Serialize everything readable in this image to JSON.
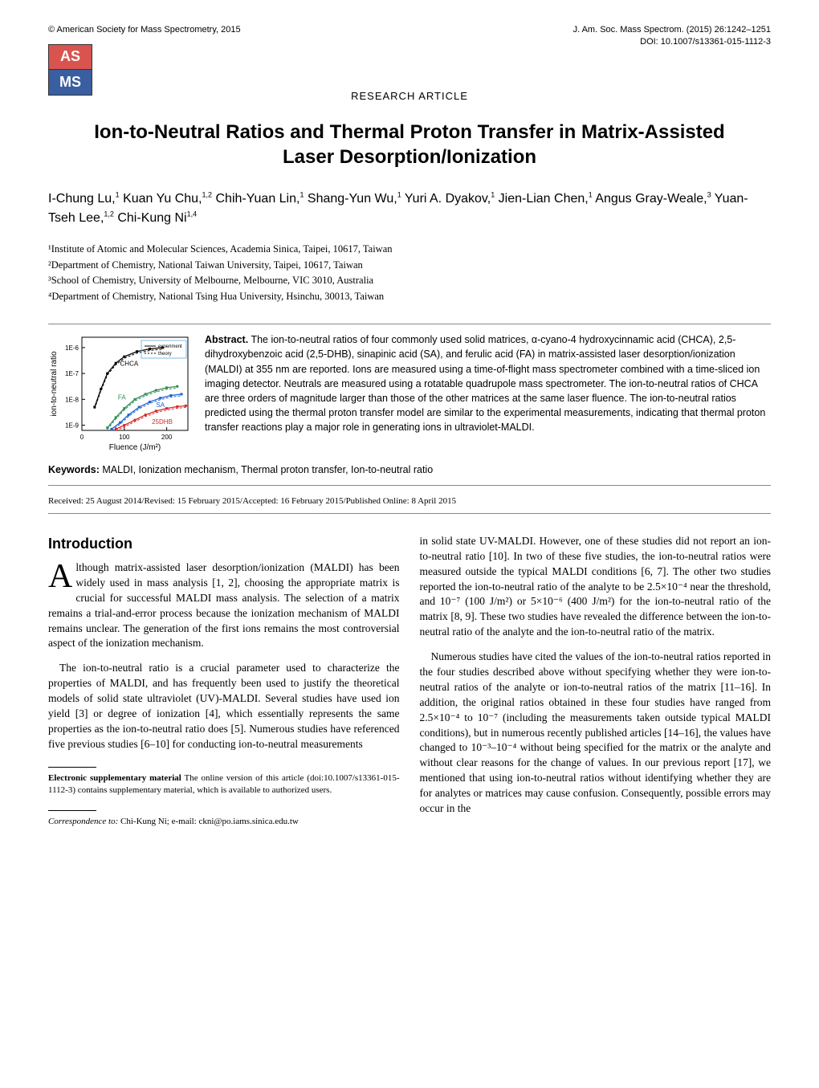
{
  "header": {
    "copyright": "© American Society for Mass Spectrometry, 2015",
    "journal_ref": "J. Am. Soc. Mass Spectrom. (2015) 26:1242–1251",
    "doi": "DOI: 10.1007/s13361-015-1112-3"
  },
  "logo": {
    "top": "AS",
    "bottom": "MS",
    "top_color": "#d9534f",
    "bottom_color": "#3a5fa0"
  },
  "section_label": "RESEARCH ARTICLE",
  "title": "Ion-to-Neutral Ratios and Thermal Proton Transfer in Matrix-Assisted Laser Desorption/Ionization",
  "authors_html": "I-Chung Lu,<sup>1</sup> Kuan Yu Chu,<sup>1,2</sup> Chih-Yuan Lin,<sup>1</sup> Shang-Yun Wu,<sup>1</sup> Yuri A. Dyakov,<sup>1</sup> Jien-Lian Chen,<sup>1</sup> Angus Gray-Weale,<sup>3</sup> Yuan-Tseh Lee,<sup>1,2</sup> Chi-Kung Ni<sup>1,4</sup>",
  "affiliations": [
    "¹Institute of Atomic and Molecular Sciences, Academia Sinica, Taipei, 10617, Taiwan",
    "²Department of Chemistry, National Taiwan University, Taipei, 10617, Taiwan",
    "³School of Chemistry, University of Melbourne, Melbourne, VIC 3010, Australia",
    "⁴Department of Chemistry, National Tsing Hua University, Hsinchu, 30013, Taiwan"
  ],
  "chart": {
    "type": "line",
    "width": 180,
    "height": 150,
    "background_color": "#ffffff",
    "axis_color": "#000000",
    "grid": false,
    "x_label": "Fluence (J/m²)",
    "y_label": "ion-to-neutral ratio",
    "label_fontsize": 10,
    "y_scale": "log",
    "y_ticks": [
      "1E-9",
      "1E-8",
      "1E-7",
      "1E-6"
    ],
    "x_ticks": [
      "0",
      "100",
      "200"
    ],
    "xlim": [
      0,
      250
    ],
    "ylim_log_exp": [
      -9.2,
      -5.6
    ],
    "legend": {
      "items": [
        "experiment",
        "theory"
      ],
      "styles": [
        "solid",
        "dashed"
      ],
      "box_color": "#5dade2",
      "position": "top-right"
    },
    "series": [
      {
        "name": "CHCA",
        "color": "#000000",
        "text_color": "#000000",
        "points": [
          [
            30,
            -8.3
          ],
          [
            45,
            -7.6
          ],
          [
            60,
            -7.0
          ],
          [
            80,
            -6.6
          ],
          [
            100,
            -6.35
          ],
          [
            130,
            -6.15
          ],
          [
            160,
            -6.05
          ],
          [
            190,
            -6.0
          ]
        ]
      },
      {
        "name": "FA",
        "color": "#2e8b57",
        "text_color": "#2e8b57",
        "points": [
          [
            60,
            -9.1
          ],
          [
            80,
            -8.7
          ],
          [
            100,
            -8.35
          ],
          [
            125,
            -8.0
          ],
          [
            150,
            -7.8
          ],
          [
            175,
            -7.65
          ],
          [
            200,
            -7.55
          ],
          [
            225,
            -7.5
          ]
        ]
      },
      {
        "name": "SA",
        "color": "#1e62d0",
        "text_color": "#1e62d0",
        "points": [
          [
            70,
            -9.15
          ],
          [
            90,
            -8.9
          ],
          [
            110,
            -8.6
          ],
          [
            135,
            -8.3
          ],
          [
            160,
            -8.1
          ],
          [
            185,
            -7.95
          ],
          [
            210,
            -7.85
          ],
          [
            235,
            -7.8
          ]
        ]
      },
      {
        "name": "25DHB",
        "color": "#d62728",
        "text_color": "#d62728",
        "points": [
          [
            80,
            -9.15
          ],
          [
            100,
            -9.0
          ],
          [
            125,
            -8.8
          ],
          [
            150,
            -8.6
          ],
          [
            175,
            -8.45
          ],
          [
            200,
            -8.35
          ],
          [
            225,
            -8.28
          ],
          [
            245,
            -8.25
          ]
        ]
      }
    ]
  },
  "abstract_label": "Abstract.",
  "abstract_body": "The ion-to-neutral ratios of four commonly used solid matrices, α-cyano-4 hydroxycinnamic acid (CHCA), 2,5-dihydroxybenzoic acid (2,5-DHB), sinapinic acid (SA), and ferulic acid (FA) in matrix-assisted laser desorption/ionization (MALDI) at 355 nm are reported. Ions are measured using a time-of-flight mass spectrometer combined with a time-sliced ion imaging detector. Neutrals are measured using a rotatable quadrupole mass spectrometer. The ion-to-neutral ratios of CHCA are three orders of magnitude larger than those of the other matrices at the same laser fluence. The ion-to-neutral ratios predicted using the thermal proton transfer model are similar to the experimental measurements, indicating that thermal proton transfer reactions play a major role in generating ions in ultraviolet-MALDI.",
  "keywords_label": "Keywords:",
  "keywords_body": "MALDI, Ionization mechanism, Thermal proton transfer, Ion-to-neutral ratio",
  "dates": "Received: 25 August 2014/Revised: 15 February 2015/Accepted: 16 February 2015/Published Online: 8 April 2015",
  "intro_heading": "Introduction",
  "body": {
    "left_p1_dropcap": "A",
    "left_p1": "lthough matrix-assisted laser desorption/ionization (MALDI) has been widely used in mass analysis [1, 2], choosing the appropriate matrix is crucial for successful MALDI mass analysis. The selection of a matrix remains a trial-and-error process because the ionization mechanism of MALDI remains unclear. The generation of the first ions remains the most controversial aspect of the ionization mechanism.",
    "left_p2": "The ion-to-neutral ratio is a crucial parameter used to characterize the properties of MALDI, and has frequently been used to justify the theoretical models of solid state ultraviolet (UV)-MALDI. Several studies have used ion yield [3] or degree of ionization [4], which essentially represents the same properties as the ion-to-neutral ratio does [5]. Numerous studies have referenced five previous studies [6–10] for conducting ion-to-neutral measurements",
    "right_p1": "in solid state UV-MALDI. However, one of these studies did not report an ion-to-neutral ratio [10]. In two of these five studies, the ion-to-neutral ratios were measured outside the typical MALDI conditions [6, 7]. The other two studies reported the ion-to-neutral ratio of the analyte to be 2.5×10⁻⁴ near the threshold, and 10⁻⁷ (100 J/m²) or 5×10⁻⁶ (400 J/m²) for the ion-to-neutral ratio of the matrix [8, 9]. These two studies have revealed the difference between the ion-to-neutral ratio of the analyte and the ion-to-neutral ratio of the matrix.",
    "right_p2": "Numerous studies have cited the values of the ion-to-neutral ratios reported in the four studies described above without specifying whether they were ion-to-neutral ratios of the analyte or ion-to-neutral ratios of the matrix [11–16]. In addition, the original ratios obtained in these four studies have ranged from 2.5×10⁻⁴ to 10⁻⁷ (including the measurements taken outside typical MALDI conditions), but in numerous recently published articles [14–16], the values have changed to 10⁻³–10⁻⁴ without being specified for the matrix or the analyte and without clear reasons for the change of values. In our previous report [17], we mentioned that using ion-to-neutral ratios without identifying whether they are for analytes or matrices may cause confusion. Consequently, possible errors may occur in the"
  },
  "footnotes": {
    "esm_bold": "Electronic supplementary material",
    "esm_text": "The online version of this article (doi:10.1007/s13361-015-1112-3) contains supplementary material, which is available to authorized users.",
    "corr_italic": "Correspondence to:",
    "corr_text": "Chi-Kung Ni; e-mail: ckni@po.iams.sinica.edu.tw"
  }
}
